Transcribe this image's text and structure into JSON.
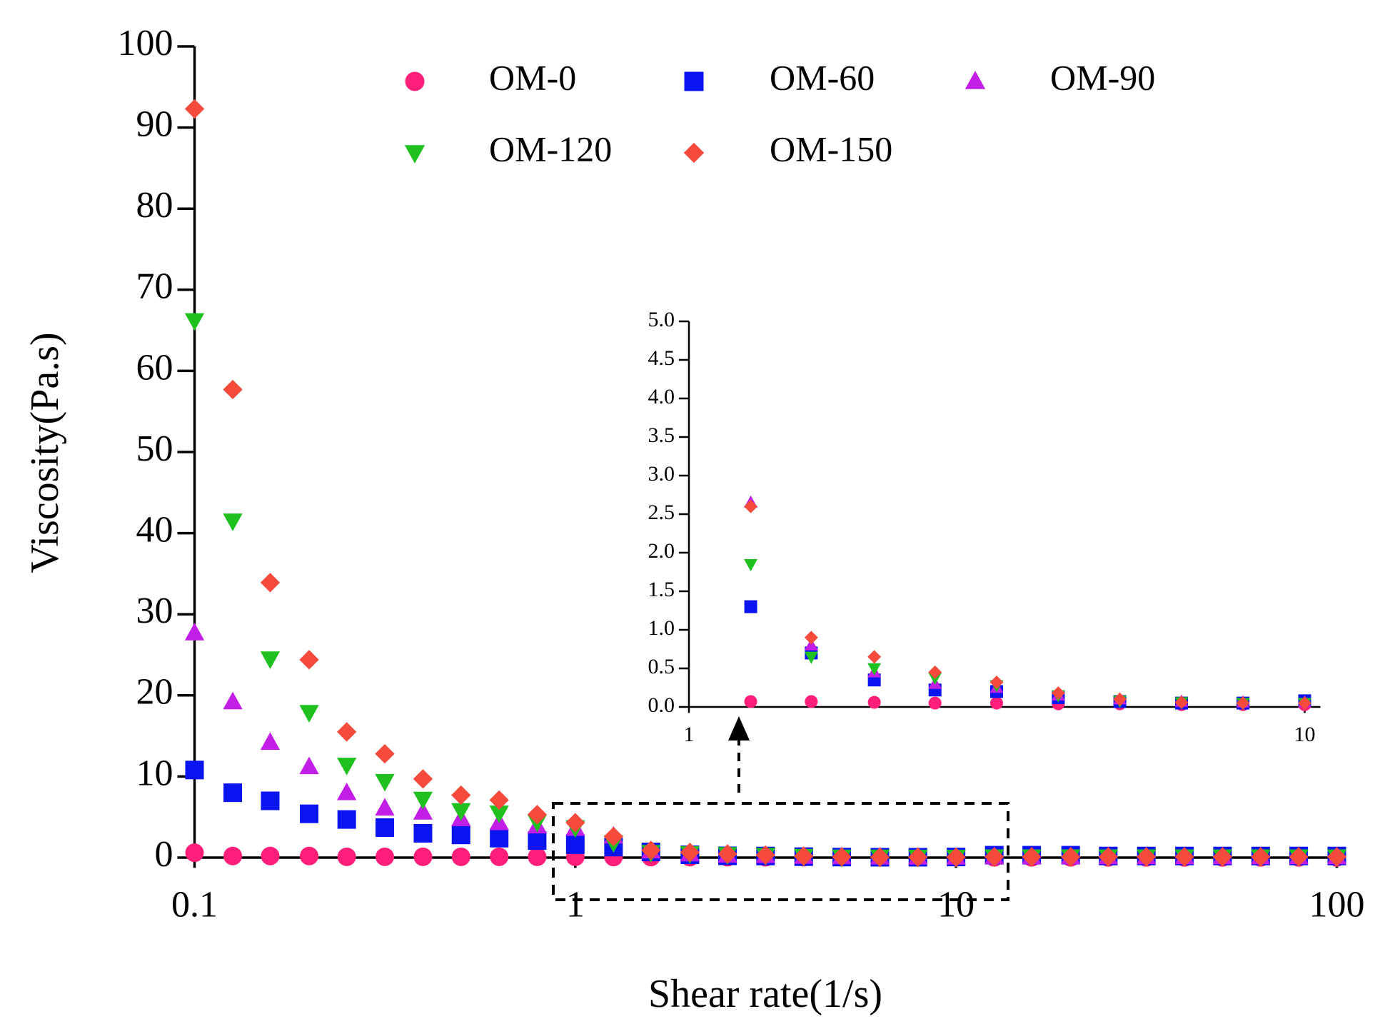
{
  "chart_data": [
    {
      "type": "scatter",
      "xlabel": "Shear rate(1/s)",
      "ylabel": "Viscosity(Pa.s)",
      "xscale": "log",
      "xlim": [
        0.1,
        100
      ],
      "xticks": [
        0.1,
        1,
        10,
        100
      ],
      "ylim": [
        0,
        100
      ],
      "yticks": [
        0,
        10,
        20,
        30,
        40,
        50,
        60,
        70,
        80,
        90,
        100
      ],
      "legend": "top",
      "x": [
        0.1,
        0.126,
        0.158,
        0.2,
        0.251,
        0.316,
        0.398,
        0.501,
        0.631,
        0.794,
        1,
        1.26,
        1.58,
        2,
        2.51,
        3.16,
        3.98,
        5.01,
        6.31,
        7.94,
        10,
        12.6,
        15.8,
        20,
        25.1,
        31.6,
        39.8,
        50.1,
        63.1,
        79.4,
        100
      ],
      "series": [
        {
          "name": "OM-0",
          "color": "#ff1f7a",
          "marker": "circle",
          "values": [
            0.6,
            0.2,
            0.2,
            0.2,
            0.1,
            0.1,
            0.1,
            0.1,
            0.1,
            0.1,
            0.1,
            0.07,
            0.07,
            0.06,
            0.05,
            0.05,
            0.04,
            0.04,
            0.03,
            0.03,
            0.03,
            0.03,
            0.03,
            0.03,
            0.02,
            0.02,
            0.02,
            0.02,
            0.02,
            0.02,
            0.02
          ]
        },
        {
          "name": "OM-60",
          "color": "#0a14f0",
          "marker": "square",
          "values": [
            10.8,
            8.0,
            7.0,
            5.4,
            4.7,
            3.7,
            3.0,
            2.8,
            2.4,
            2.1,
            1.6,
            1.3,
            0.7,
            0.35,
            0.22,
            0.2,
            0.12,
            0.07,
            0.05,
            0.05,
            0.08,
            0.3,
            0.3,
            0.3,
            0.2,
            0.2,
            0.2,
            0.2,
            0.2,
            0.2,
            0.2
          ]
        },
        {
          "name": "OM-90",
          "color": "#c21ee6",
          "marker": "triangle-up",
          "values": [
            27.7,
            19.2,
            14.2,
            11.2,
            8.0,
            6.1,
            5.6,
            4.8,
            4.3,
            3.9,
            3.6,
            2.65,
            0.8,
            0.45,
            0.3,
            0.25,
            0.15,
            0.1,
            0.07,
            0.06,
            0.06,
            0.1,
            0.1,
            0.1,
            0.1,
            0.1,
            0.1,
            0.1,
            0.1,
            0.1,
            0.1
          ]
        },
        {
          "name": "OM-120",
          "color": "#1fc01f",
          "marker": "triangle-down",
          "values": [
            66.2,
            41.5,
            24.5,
            17.9,
            11.4,
            9.4,
            7.2,
            5.8,
            5.5,
            4.4,
            3.7,
            1.85,
            0.65,
            0.5,
            0.38,
            0.28,
            0.15,
            0.08,
            0.06,
            0.05,
            0.05,
            0.1,
            0.1,
            0.1,
            0.1,
            0.1,
            0.1,
            0.1,
            0.1,
            0.1,
            0.1
          ]
        },
        {
          "name": "OM-150",
          "color": "#f54a3c",
          "marker": "diamond",
          "values": [
            92.3,
            57.7,
            33.9,
            24.4,
            15.5,
            12.8,
            9.7,
            7.7,
            7.1,
            5.3,
            4.3,
            2.6,
            0.9,
            0.65,
            0.45,
            0.32,
            0.18,
            0.1,
            0.06,
            0.05,
            0.05,
            0.1,
            0.1,
            0.1,
            0.1,
            0.1,
            0.1,
            0.1,
            0.1,
            0.1,
            0.1
          ]
        }
      ]
    },
    {
      "type": "scatter",
      "xscale": "log",
      "xlim": [
        1,
        10
      ],
      "xticks": [
        1,
        10
      ],
      "ylim": [
        0,
        5
      ],
      "yticks": [
        {
          "value": 0,
          "label": "0.0"
        },
        {
          "value": 0.5,
          "label": "0.5"
        },
        {
          "value": 1,
          "label": "1.0"
        },
        {
          "value": 1.5,
          "label": "1.5"
        },
        {
          "value": 2,
          "label": "2.0"
        },
        {
          "value": 2.5,
          "label": "2.5"
        },
        {
          "value": 3,
          "label": "3.0"
        },
        {
          "value": 3.5,
          "label": "3.5"
        },
        {
          "value": 4,
          "label": "4.0"
        },
        {
          "value": 4.5,
          "label": "4.5"
        },
        {
          "value": 5,
          "label": "5.0"
        }
      ],
      "x": [
        1.26,
        1.58,
        2,
        2.51,
        3.16,
        3.98,
        5.01,
        6.31,
        7.94,
        10
      ],
      "series": [
        {
          "name": "OM-0",
          "color": "#ff1f7a",
          "marker": "circle",
          "values": [
            0.07,
            0.07,
            0.06,
            0.05,
            0.05,
            0.04,
            0.04,
            0.03,
            0.03,
            0.03
          ]
        },
        {
          "name": "OM-60",
          "color": "#0a14f0",
          "marker": "square",
          "values": [
            1.3,
            0.7,
            0.35,
            0.22,
            0.2,
            0.12,
            0.07,
            0.05,
            0.05,
            0.08
          ]
        },
        {
          "name": "OM-90",
          "color": "#c21ee6",
          "marker": "triangle-up",
          "values": [
            2.65,
            0.8,
            0.45,
            0.3,
            0.25,
            0.15,
            0.1,
            0.07,
            0.06,
            0.06
          ]
        },
        {
          "name": "OM-120",
          "color": "#1fc01f",
          "marker": "triangle-down",
          "values": [
            1.85,
            0.65,
            0.5,
            0.38,
            0.28,
            0.15,
            0.08,
            0.06,
            0.05,
            0.05
          ]
        },
        {
          "name": "OM-150",
          "color": "#f54a3c",
          "marker": "diamond",
          "values": [
            2.6,
            0.9,
            0.65,
            0.45,
            0.32,
            0.18,
            0.1,
            0.06,
            0.05,
            0.05
          ]
        }
      ]
    }
  ]
}
